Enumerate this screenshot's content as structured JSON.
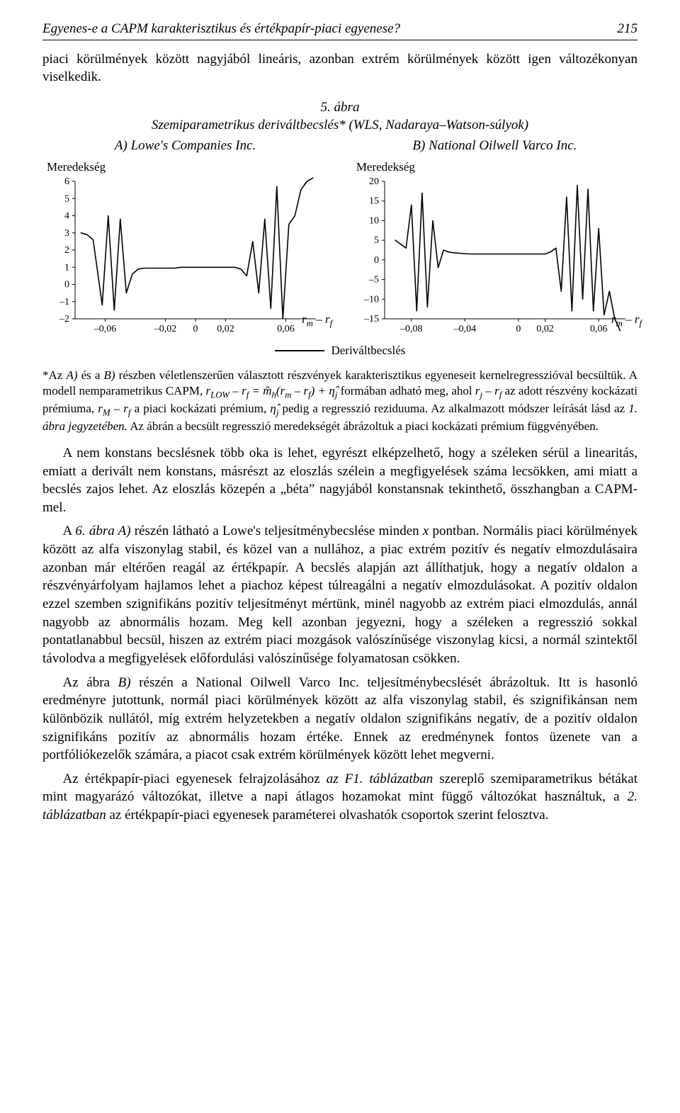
{
  "header": {
    "title": "Egyenes-e a CAPM karakterisztikus és értékpapír-piaci egyenese?",
    "page": "215"
  },
  "intro": {
    "p1": "piaci körülmények között nagyjából lineáris, azonban extrém körülmények között igen változékonyan viselkedik."
  },
  "figure": {
    "caption_line1": "5. ábra",
    "caption_line2": "Szemiparametrikus deriváltbecslés* (WLS, Nadaraya–Watson-súlyok)",
    "panelA_title": "A) Lowe's Companies Inc.",
    "panelB_title": "B) National Oilwell Varco Inc.",
    "y_label_A": "Meredekség",
    "y_label_B": "Meredekség",
    "x_label": "rₘ – r_f",
    "legend": "Deriváltbecslés",
    "chartA": {
      "type": "line",
      "line_color": "#000000",
      "background_color": "#ffffff",
      "grid_color": "#ffffff",
      "line_width": 1.6,
      "xlim": [
        -0.08,
        0.08
      ],
      "ylim": [
        -2,
        6
      ],
      "xticks": [
        -0.06,
        -0.02,
        0,
        0.02,
        0.06
      ],
      "xtick_labels": [
        "–0,06",
        "–0,02",
        "0",
        "0,02",
        "0,06"
      ],
      "yticks": [
        -2,
        -1,
        0,
        1,
        2,
        3,
        4,
        5,
        6
      ],
      "ytick_labels": [
        "–2",
        "–1",
        "0",
        "1",
        "2",
        "3",
        "4",
        "5",
        "6"
      ],
      "tick_fontsize": 14,
      "x": [
        -0.076,
        -0.072,
        -0.068,
        -0.062,
        -0.058,
        -0.054,
        -0.05,
        -0.046,
        -0.042,
        -0.038,
        -0.034,
        -0.03,
        -0.026,
        -0.022,
        -0.018,
        -0.014,
        -0.01,
        -0.006,
        -0.002,
        0.002,
        0.006,
        0.01,
        0.014,
        0.018,
        0.022,
        0.026,
        0.03,
        0.034,
        0.038,
        0.042,
        0.046,
        0.05,
        0.054,
        0.058,
        0.062,
        0.066,
        0.07,
        0.074,
        0.078
      ],
      "y": [
        3.0,
        2.9,
        2.6,
        -1.2,
        4.0,
        -1.5,
        3.8,
        -0.5,
        0.6,
        0.9,
        0.95,
        0.95,
        0.95,
        0.95,
        0.95,
        0.95,
        1.0,
        1.0,
        1.0,
        1.0,
        1.0,
        1.0,
        1.0,
        1.0,
        1.0,
        1.0,
        0.9,
        0.5,
        2.5,
        -0.5,
        3.8,
        -1.4,
        5.7,
        -2.0,
        3.5,
        4.0,
        5.5,
        6.0,
        6.2
      ]
    },
    "chartB": {
      "type": "line",
      "line_color": "#000000",
      "background_color": "#ffffff",
      "grid_color": "#ffffff",
      "line_width": 1.6,
      "xlim": [
        -0.1,
        0.08
      ],
      "ylim": [
        -15,
        20
      ],
      "xticks": [
        -0.08,
        -0.04,
        0,
        0.02,
        0.06
      ],
      "xtick_labels": [
        "–0,08",
        "–0,04",
        "0",
        "0,02",
        "0,06"
      ],
      "yticks": [
        -15,
        -10,
        -5,
        0,
        5,
        10,
        15,
        20
      ],
      "ytick_labels": [
        "–15",
        "–10",
        "–5",
        "0",
        "5",
        "10",
        "15",
        "20"
      ],
      "tick_fontsize": 14,
      "x": [
        -0.092,
        -0.088,
        -0.084,
        -0.08,
        -0.076,
        -0.072,
        -0.068,
        -0.064,
        -0.06,
        -0.056,
        -0.052,
        -0.048,
        -0.044,
        -0.04,
        -0.036,
        -0.032,
        -0.028,
        -0.024,
        -0.02,
        -0.016,
        -0.012,
        -0.008,
        -0.004,
        0.0,
        0.004,
        0.008,
        0.012,
        0.016,
        0.02,
        0.024,
        0.028,
        0.032,
        0.036,
        0.04,
        0.044,
        0.048,
        0.052,
        0.056,
        0.06,
        0.064,
        0.068,
        0.072,
        0.076
      ],
      "y": [
        5,
        4,
        3,
        14,
        -13,
        17,
        -12,
        10,
        -2,
        2.5,
        2.0,
        1.8,
        1.7,
        1.6,
        1.5,
        1.5,
        1.5,
        1.5,
        1.5,
        1.5,
        1.5,
        1.5,
        1.5,
        1.5,
        1.5,
        1.5,
        1.5,
        1.5,
        1.5,
        2.0,
        3.0,
        -8,
        16,
        -13,
        19,
        -10,
        18,
        -13,
        8,
        -14,
        -8,
        -15,
        -18
      ]
    }
  },
  "footnote": {
    "prefix": "*Az ",
    "A": "A)",
    "mid1": " és a ",
    "B": "B)",
    "text1": " részben véletlenszerűen választott részvények karakterisztikus egyeneseit kernel­regresszióval becsültük. A modell nemparametrikus CAPM, ",
    "eq": "r_LOW – r_f = m̂_h (r_m – r_f) + η̂_j",
    "text2": " formában adható meg, ahol ",
    "rj": "r_j – r_f",
    "text3": " az adott részvény kockázati prémiuma, ",
    "rM": "r_M – r_f",
    "text4": " a piaci kockázati prémium, ",
    "eta": "η̂_j",
    "text5": " pedig a regresszió reziduuma. Az alkalmazott módszer leírását lásd az ",
    "ref1": "1. ábra jegyzetében.",
    "text6": " Az ábrán a becsült regresszió meredekségét ábrázoltuk a piaci kockázati prémium függvényében."
  },
  "body": {
    "p1": "A nem konstans becslésnek több oka is lehet, egyrészt elképzelhető, hogy a széleken sérül a linearitás, emiatt a derivált nem konstans, másrészt az eloszlás szélein a megfigyelések száma lecsökken, ami miatt a becslés zajos lehet. Az eloszlás közepén a „béta” nagyjából konstansnak tekinthető, összhangban a CAPM-mel.",
    "p2a": "A ",
    "p2ref": "6. ábra A)",
    "p2b": " részén látható a Lowe's teljesítménybecslése minden ",
    "p2x": "x",
    "p2c": " pontban. Normális piaci körülmények között az alfa viszonylag stabil, és közel van a nullához, a piac extrém pozitív és negatív elmozdulásaira azonban már eltérően reagál az értékpapír. A becslés alapján azt állíthatjuk, hogy a negatív oldalon a részvényárfolyam hajlamos lehet a piachoz képest túlreagálni a negatív elmozdulásokat. A pozitív oldalon ezzel szemben szignifikáns pozitív teljesítményt mértünk, minél nagyobb az extrém piaci elmozdulás, annál nagyobb az abnormális hozam. Meg kell azonban jegyezni, hogy a széleken a regresszió sokkal pontatlanabbul becsül, hiszen az extrém piaci mozgások valószínűsége viszonylag kicsi, a normál szintektől távolodva a megfigyelések előfordulási valószínűsége folyamatosan csökken.",
    "p3a": "Az ábra ",
    "p3ref": "B)",
    "p3b": " részén a National Oilwell Varco Inc. teljesítménybecslését ábrázoltuk. Itt is hasonló eredményre jutottunk, normál piaci körülmények között az alfa viszonylag stabil, és szignifikánsan nem különbözik nullától, míg extrém helyzetekben a negatív oldalon szignifikáns negatív, de a pozitív oldalon szignifikáns pozitív az abnormális hozam értéke. Ennek az eredménynek fontos üzenete van a portfóliókezelők számára, a piacot csak extrém körülmények között lehet megverni.",
    "p4a": "Az értékpapír-piaci egyenesek felrajzolásához ",
    "p4ref1": "az F1. táblázatban",
    "p4b": " szereplő szemiparametrikus bétákat mint magyarázó változókat, illetve a napi átlagos hozamokat mint függő változókat használtuk, a ",
    "p4ref2": "2. táblázatban",
    "p4c": " az értékpapír-piaci egyenesek paraméterei olvashatók csoportok szerint felosztva."
  }
}
